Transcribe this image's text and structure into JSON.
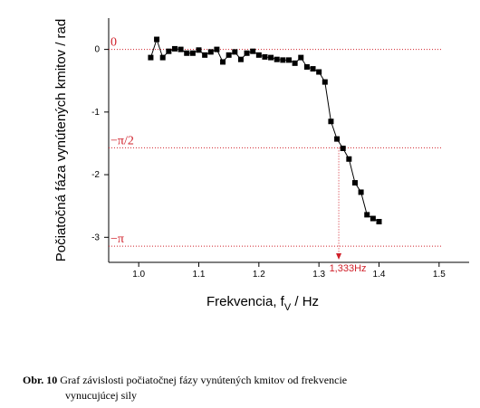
{
  "chart_data": {
    "type": "line",
    "y_label": "Počiatočná fáza vynútených kmitov / rad",
    "x_label": [
      "Frekvencia, f",
      "V",
      " / Hz"
    ],
    "x": [
      1.02,
      1.03,
      1.04,
      1.05,
      1.06,
      1.07,
      1.08,
      1.09,
      1.1,
      1.11,
      1.12,
      1.13,
      1.14,
      1.15,
      1.16,
      1.17,
      1.18,
      1.19,
      1.2,
      1.21,
      1.22,
      1.23,
      1.24,
      1.25,
      1.26,
      1.27,
      1.28,
      1.29,
      1.3,
      1.31,
      1.32,
      1.33,
      1.34,
      1.35,
      1.36,
      1.37,
      1.38,
      1.39,
      1.4
    ],
    "series": [
      {
        "color": "#000000",
        "values": [
          -0.13,
          0.16,
          -0.13,
          -0.03,
          0.01,
          0,
          -0.06,
          -0.06,
          -0.01,
          -0.09,
          -0.04,
          0,
          -0.2,
          -0.09,
          -0.04,
          -0.16,
          -0.06,
          -0.03,
          -0.09,
          -0.12,
          -0.13,
          -0.16,
          -0.17,
          -0.17,
          -0.22,
          -0.13,
          -0.28,
          -0.31,
          -0.36,
          -0.52,
          -1.15,
          -1.43,
          -1.58,
          -1.75,
          -2.13,
          -2.28,
          -2.64,
          -2.7,
          -2.75
        ]
      }
    ],
    "xlim": [
      0.95,
      1.55
    ],
    "xticks": [
      {
        "value": 1.0,
        "label": "1.0"
      },
      {
        "value": 1.1,
        "label": "1.1"
      },
      {
        "value": 1.2,
        "label": "1.2"
      },
      {
        "value": 1.3,
        "label": "1.3"
      },
      {
        "value": 1.4,
        "label": "1.4"
      },
      {
        "value": 1.5,
        "label": "1.5"
      }
    ],
    "ylim": [
      -3.4,
      0.5
    ],
    "yticks": [
      0,
      -1,
      -2,
      -3
    ],
    "reference_lines": [
      {
        "value": 0,
        "label": "0"
      },
      {
        "value": -1.5708,
        "label": "−π/2"
      },
      {
        "value": -3.1416,
        "label": "−π"
      }
    ],
    "reference_color": "#d0202a",
    "marker": {
      "x": 1.333,
      "y": -1.5708,
      "label": "1,333Hz"
    }
  },
  "caption": {
    "number": "Obr. 10",
    "line1": "Graf závislosti počiatočnej fázy vynútených kmitov  od frekvencie",
    "line2": "vynucujúcej sily"
  }
}
